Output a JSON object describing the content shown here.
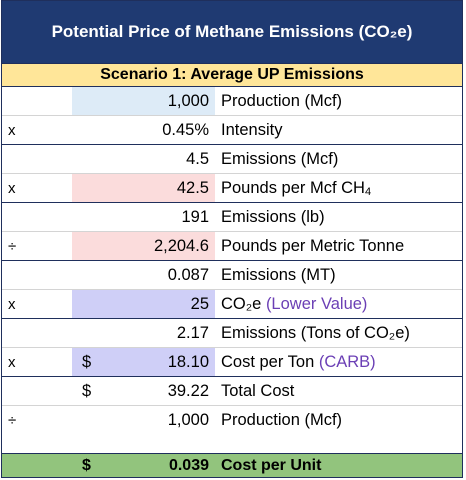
{
  "title": "Potential Price of Methane Emissions (CO₂e)",
  "scenario": "Scenario 1: Average UP Emissions",
  "rows": [
    {
      "op": "",
      "dollar": "",
      "value": "1,000",
      "label": "Production (Mcf)",
      "sub": "",
      "note": "",
      "fill": "blue"
    },
    {
      "op": "x",
      "dollar": "",
      "value": "0.45%",
      "label": "Intensity",
      "sub": "",
      "note": "",
      "fill": ""
    },
    {
      "op": "",
      "dollar": "",
      "value": "4.5",
      "label": "Emissions (Mcf)",
      "sub": "",
      "note": "",
      "fill": ""
    },
    {
      "op": "x",
      "dollar": "",
      "value": "42.5",
      "label": "Pounds per Mcf CH",
      "sub": "4",
      "note": "",
      "fill": "pink"
    },
    {
      "op": "",
      "dollar": "",
      "value": "191",
      "label": "Emissions (lb)",
      "sub": "",
      "note": "",
      "fill": ""
    },
    {
      "op": "÷",
      "dollar": "",
      "value": "2,204.6",
      "label": "Pounds per Metric Tonne",
      "sub": "",
      "note": "",
      "fill": "pink"
    },
    {
      "op": "",
      "dollar": "",
      "value": "0.087",
      "label": "Emissions (MT)",
      "sub": "",
      "note": "",
      "fill": ""
    },
    {
      "op": "x",
      "dollar": "",
      "value": "25",
      "label": "CO₂e",
      "sub": "",
      "note": "(Lower Value)",
      "fill": "purple"
    },
    {
      "op": "",
      "dollar": "",
      "value": "2.17",
      "label": "Emissions (Tons of CO₂e)",
      "sub": "",
      "note": "",
      "fill": ""
    },
    {
      "op": "x",
      "dollar": "$",
      "value": "18.10",
      "label": "Cost per Ton",
      "sub": "",
      "note": "(CARB)",
      "fill": "purple"
    },
    {
      "op": "",
      "dollar": "$",
      "value": "39.22",
      "label": "Total Cost",
      "sub": "",
      "note": "",
      "fill": ""
    },
    {
      "op": "÷",
      "dollar": "",
      "value": "1,000",
      "label": "Production (Mcf)",
      "sub": "",
      "note": "",
      "fill": ""
    }
  ],
  "total": {
    "dollar": "$",
    "value": "0.039",
    "label": "Cost per Unit"
  },
  "colors": {
    "header": "#1f3a72",
    "scenario": "#ffe699",
    "total": "#92c47d",
    "blue": "#ddebf7",
    "pink": "#fbdcdc",
    "purple": "#cfcff7",
    "note": "#6b3fb5"
  }
}
